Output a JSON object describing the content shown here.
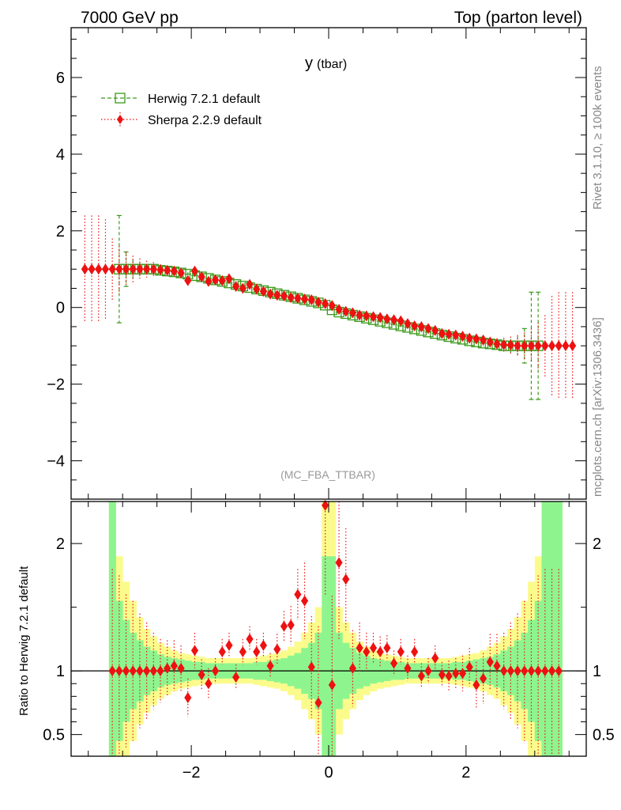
{
  "header": {
    "left_title": "7000 GeV pp",
    "right_title": "Top (parton level)"
  },
  "side_labels": {
    "rivet": "Rivet 3.1.10, ≥ 100k events",
    "source": "mcplots.cern.ch [arXiv:1306.3436]"
  },
  "chart_data": [
    {
      "type": "line",
      "title": "y",
      "title_suffix": "(tbar)",
      "watermark": "(MC_FBA_TTBAR)",
      "xlim": [
        -3.75,
        3.75
      ],
      "ylim": [
        -5,
        7.3
      ],
      "y_ticks": [
        -4,
        -2,
        0,
        2,
        4,
        6
      ],
      "y_tick_labels": [
        "−4",
        "−2",
        "0",
        "2",
        "4",
        "6"
      ],
      "legend_position": "top-left",
      "x": [
        -3.55,
        -3.45,
        -3.35,
        -3.25,
        -3.15,
        -3.05,
        -2.95,
        -2.85,
        -2.75,
        -2.65,
        -2.55,
        -2.45,
        -2.35,
        -2.25,
        -2.15,
        -2.05,
        -1.95,
        -1.85,
        -1.75,
        -1.65,
        -1.55,
        -1.45,
        -1.35,
        -1.25,
        -1.15,
        -1.05,
        -0.95,
        -0.85,
        -0.75,
        -0.65,
        -0.55,
        -0.45,
        -0.35,
        -0.25,
        -0.15,
        -0.05,
        0.05,
        0.15,
        0.25,
        0.35,
        0.45,
        0.55,
        0.65,
        0.75,
        0.85,
        0.95,
        1.05,
        1.15,
        1.25,
        1.35,
        1.45,
        1.55,
        1.65,
        1.75,
        1.85,
        1.95,
        2.05,
        2.15,
        2.25,
        2.35,
        2.45,
        2.55,
        2.65,
        2.75,
        2.85,
        2.95,
        3.05,
        3.15,
        3.25,
        3.35,
        3.45,
        3.55
      ],
      "series": [
        {
          "name": "Herwig 7.2.1 default",
          "color": "#3a9a1a",
          "marker": "open-square",
          "linestyle": "dashed",
          "x": [
            -3.05,
            -2.95,
            -2.85,
            -2.75,
            -2.65,
            -2.55,
            -2.45,
            -2.35,
            -2.25,
            -2.15,
            -2.05,
            -1.95,
            -1.85,
            -1.75,
            -1.65,
            -1.55,
            -1.45,
            -1.35,
            -1.25,
            -1.15,
            -1.05,
            -0.95,
            -0.85,
            -0.75,
            -0.65,
            -0.55,
            -0.45,
            -0.35,
            -0.25,
            -0.15,
            -0.05,
            0.05,
            0.15,
            0.25,
            0.35,
            0.45,
            0.55,
            0.65,
            0.75,
            0.85,
            0.95,
            1.05,
            1.15,
            1.25,
            1.35,
            1.45,
            1.55,
            1.65,
            1.75,
            1.85,
            1.95,
            2.05,
            2.15,
            2.25,
            2.35,
            2.45,
            2.55,
            2.65,
            2.75,
            2.85,
            2.95,
            3.05
          ],
          "values": [
            1.0,
            1.0,
            1.0,
            1.0,
            1.0,
            1.0,
            0.97,
            0.95,
            0.93,
            0.9,
            0.87,
            0.83,
            0.8,
            0.76,
            0.72,
            0.68,
            0.64,
            0.6,
            0.56,
            0.52,
            0.48,
            0.44,
            0.4,
            0.36,
            0.32,
            0.28,
            0.24,
            0.2,
            0.16,
            0.12,
            0.06,
            -0.06,
            -0.12,
            -0.16,
            -0.2,
            -0.24,
            -0.28,
            -0.32,
            -0.36,
            -0.4,
            -0.44,
            -0.48,
            -0.52,
            -0.56,
            -0.6,
            -0.64,
            -0.68,
            -0.72,
            -0.76,
            -0.8,
            -0.83,
            -0.87,
            -0.9,
            -0.93,
            -0.95,
            -0.97,
            -1.0,
            -1.0,
            -1.0,
            -1.0,
            -1.0,
            -1.0
          ],
          "errors": [
            1.4,
            0.45,
            0.25,
            0.18,
            0.14,
            0.12,
            0.1,
            0.08,
            0.07,
            0.06,
            0.05,
            0.05,
            0.04,
            0.04,
            0.04,
            0.03,
            0.03,
            0.03,
            0.03,
            0.03,
            0.03,
            0.03,
            0.03,
            0.03,
            0.03,
            0.03,
            0.03,
            0.03,
            0.03,
            0.03,
            0.03,
            0.03,
            0.03,
            0.03,
            0.03,
            0.03,
            0.03,
            0.03,
            0.03,
            0.03,
            0.03,
            0.03,
            0.03,
            0.03,
            0.03,
            0.03,
            0.04,
            0.04,
            0.04,
            0.05,
            0.05,
            0.06,
            0.07,
            0.08,
            0.1,
            0.12,
            0.14,
            0.18,
            0.25,
            0.45,
            1.4,
            1.4
          ]
        },
        {
          "name": "Sherpa 2.2.9 default",
          "color": "#ee1111",
          "marker": "filled-diamond",
          "linestyle": "dotted",
          "values": [
            1.0,
            1.0,
            1.0,
            1.0,
            1.0,
            1.0,
            1.0,
            1.0,
            1.0,
            1.0,
            1.0,
            0.98,
            0.97,
            0.95,
            0.9,
            0.7,
            0.95,
            0.8,
            0.68,
            0.72,
            0.7,
            0.75,
            0.55,
            0.5,
            0.6,
            0.48,
            0.42,
            0.35,
            0.32,
            0.3,
            0.26,
            0.24,
            0.22,
            0.2,
            0.14,
            0.1,
            0.05,
            -0.05,
            -0.1,
            -0.14,
            -0.2,
            -0.22,
            -0.24,
            -0.26,
            -0.3,
            -0.32,
            -0.35,
            -0.42,
            -0.48,
            -0.5,
            -0.55,
            -0.6,
            -0.68,
            -0.7,
            -0.72,
            -0.75,
            -0.8,
            -0.82,
            -0.85,
            -0.9,
            -0.95,
            -0.97,
            -0.98,
            -1.0,
            -1.0,
            -1.0,
            -1.0,
            -1.0,
            -1.0,
            -1.0,
            -1.0,
            -1.0
          ],
          "errors": [
            1.4,
            1.4,
            1.4,
            1.3,
            0.8,
            0.6,
            0.45,
            0.35,
            0.28,
            0.22,
            0.18,
            0.15,
            0.12,
            0.1,
            0.1,
            0.08,
            0.07,
            0.06,
            0.05,
            0.05,
            0.05,
            0.04,
            0.04,
            0.04,
            0.04,
            0.04,
            0.04,
            0.03,
            0.03,
            0.03,
            0.03,
            0.03,
            0.03,
            0.03,
            0.03,
            0.03,
            0.03,
            0.03,
            0.03,
            0.03,
            0.03,
            0.03,
            0.03,
            0.03,
            0.03,
            0.04,
            0.04,
            0.04,
            0.04,
            0.04,
            0.04,
            0.05,
            0.05,
            0.05,
            0.06,
            0.07,
            0.08,
            0.1,
            0.1,
            0.12,
            0.15,
            0.18,
            0.22,
            0.28,
            0.35,
            0.45,
            0.6,
            0.8,
            1.3,
            1.4,
            1.4,
            1.4
          ]
        }
      ]
    },
    {
      "type": "line",
      "ylabel": "Ratio to Herwig 7.2.1 default",
      "xlim": [
        -3.75,
        3.75
      ],
      "ylim": [
        0.33,
        2.33
      ],
      "y_ticks": [
        0.5,
        1,
        2
      ],
      "y_tick_labels": [
        "0.5",
        "1",
        "2"
      ],
      "x_ticks": [
        -2,
        0,
        2
      ],
      "x_tick_labels": [
        "−2",
        "0",
        "2"
      ],
      "band_x": [
        -3.15,
        -3.05,
        -2.95,
        -2.85,
        -2.75,
        -2.65,
        -2.55,
        -2.45,
        -2.35,
        -2.25,
        -2.15,
        -2.05,
        -1.95,
        -1.85,
        -1.75,
        -1.65,
        -1.55,
        -1.45,
        -1.35,
        -1.25,
        -1.15,
        -1.05,
        -0.95,
        -0.85,
        -0.75,
        -0.65,
        -0.55,
        -0.45,
        -0.35,
        -0.25,
        -0.15,
        -0.05,
        0.05,
        0.15,
        0.25,
        0.35,
        0.45,
        0.55,
        0.65,
        0.75,
        0.85,
        0.95,
        1.05,
        1.15,
        1.25,
        1.35,
        1.45,
        1.55,
        1.65,
        1.75,
        1.85,
        1.95,
        2.05,
        2.15,
        2.25,
        2.35,
        2.45,
        2.55,
        2.65,
        2.75,
        2.85,
        2.95,
        3.05,
        3.15,
        3.25,
        3.35
      ],
      "band_inner": [
        1.4,
        0.55,
        0.4,
        0.3,
        0.24,
        0.19,
        0.16,
        0.13,
        0.11,
        0.1,
        0.09,
        0.08,
        0.07,
        0.07,
        0.06,
        0.06,
        0.06,
        0.06,
        0.06,
        0.06,
        0.06,
        0.07,
        0.07,
        0.08,
        0.09,
        0.1,
        0.12,
        0.14,
        0.18,
        0.22,
        0.3,
        0.9,
        0.9,
        0.3,
        0.22,
        0.18,
        0.14,
        0.12,
        0.1,
        0.09,
        0.08,
        0.07,
        0.07,
        0.06,
        0.06,
        0.06,
        0.06,
        0.06,
        0.06,
        0.06,
        0.07,
        0.07,
        0.08,
        0.09,
        0.1,
        0.11,
        0.13,
        0.16,
        0.19,
        0.24,
        0.3,
        0.4,
        0.55,
        1.4,
        1.4,
        1.4
      ],
      "band_outer": [
        2.0,
        0.9,
        0.7,
        0.55,
        0.42,
        0.33,
        0.27,
        0.22,
        0.19,
        0.16,
        0.14,
        0.13,
        0.12,
        0.11,
        0.1,
        0.1,
        0.1,
        0.1,
        0.1,
        0.1,
        0.1,
        0.11,
        0.12,
        0.13,
        0.14,
        0.16,
        0.19,
        0.23,
        0.3,
        0.38,
        0.5,
        1.4,
        1.4,
        0.5,
        0.38,
        0.3,
        0.23,
        0.19,
        0.16,
        0.14,
        0.13,
        0.12,
        0.11,
        0.1,
        0.1,
        0.1,
        0.1,
        0.1,
        0.1,
        0.1,
        0.11,
        0.12,
        0.13,
        0.14,
        0.16,
        0.19,
        0.22,
        0.27,
        0.33,
        0.42,
        0.55,
        0.7,
        0.9,
        2.0,
        2.0,
        2.0
      ],
      "series": [
        {
          "name": "Sherpa 2.2.9 default",
          "color": "#ee1111",
          "x": [
            -3.15,
            -3.05,
            -2.95,
            -2.85,
            -2.75,
            -2.65,
            -2.55,
            -2.45,
            -2.35,
            -2.25,
            -2.15,
            -2.05,
            -1.95,
            -1.85,
            -1.75,
            -1.65,
            -1.55,
            -1.45,
            -1.35,
            -1.25,
            -1.15,
            -1.05,
            -0.95,
            -0.85,
            -0.75,
            -0.65,
            -0.55,
            -0.45,
            -0.35,
            -0.25,
            -0.15,
            -0.05,
            0.05,
            0.15,
            0.25,
            0.35,
            0.45,
            0.55,
            0.65,
            0.75,
            0.85,
            0.95,
            1.05,
            1.15,
            1.25,
            1.35,
            1.45,
            1.55,
            1.65,
            1.75,
            1.85,
            1.95,
            2.05,
            2.15,
            2.25,
            2.35,
            2.45,
            2.55,
            2.65,
            2.75,
            2.85,
            2.95,
            3.05,
            3.15,
            3.25,
            3.35
          ],
          "values": [
            1.0,
            1.0,
            1.0,
            1.0,
            1.0,
            1.0,
            1.0,
            1.0,
            1.02,
            1.04,
            1.02,
            0.79,
            1.16,
            0.97,
            0.9,
            1.0,
            1.15,
            1.2,
            0.95,
            1.15,
            1.25,
            1.15,
            1.2,
            1.04,
            1.17,
            1.35,
            1.36,
            1.6,
            1.55,
            1.03,
            0.75,
            2.3,
            0.89,
            1.85,
            1.72,
            1.02,
            1.18,
            1.15,
            1.18,
            1.15,
            1.18,
            1.06,
            1.15,
            1.02,
            1.15,
            0.96,
            1.0,
            1.1,
            0.97,
            0.96,
            0.98,
            0.98,
            1.03,
            0.89,
            0.94,
            1.07,
            1.04,
            1.0,
            1.0,
            1.0,
            1.0,
            1.0,
            1.0,
            1.0,
            1.0,
            1.0
          ],
          "errors": [
            0.8,
            0.75,
            0.6,
            0.55,
            0.45,
            0.38,
            0.3,
            0.25,
            0.22,
            0.2,
            0.18,
            0.15,
            0.14,
            0.12,
            0.12,
            0.1,
            0.1,
            0.1,
            0.1,
            0.1,
            0.1,
            0.1,
            0.1,
            0.1,
            0.12,
            0.12,
            0.15,
            0.2,
            0.3,
            0.4,
            0.6,
            0.7,
            0.7,
            0.6,
            0.4,
            0.3,
            0.2,
            0.15,
            0.12,
            0.12,
            0.1,
            0.1,
            0.1,
            0.1,
            0.1,
            0.1,
            0.1,
            0.1,
            0.1,
            0.12,
            0.12,
            0.14,
            0.15,
            0.18,
            0.2,
            0.22,
            0.25,
            0.3,
            0.38,
            0.45,
            0.55,
            0.6,
            0.75,
            0.8,
            0.8,
            0.8
          ]
        }
      ]
    }
  ]
}
